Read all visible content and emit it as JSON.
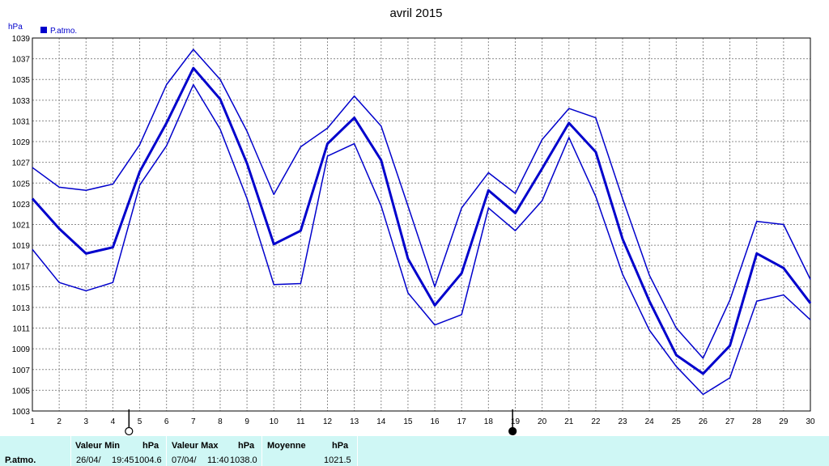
{
  "title": "avril 2015",
  "legend": {
    "label": "P.atmo.",
    "color": "#0000cc"
  },
  "chart_data": {
    "type": "line",
    "ylabel": "hPa",
    "ylim": [
      1003,
      1039
    ],
    "yticks": [
      1003,
      1005,
      1007,
      1009,
      1011,
      1013,
      1015,
      1017,
      1019,
      1021,
      1023,
      1025,
      1027,
      1029,
      1031,
      1033,
      1035,
      1037,
      1039
    ],
    "xlim": [
      1,
      30
    ],
    "x": [
      1,
      2,
      3,
      4,
      5,
      6,
      7,
      8,
      9,
      10,
      11,
      12,
      13,
      14,
      15,
      16,
      17,
      18,
      19,
      20,
      21,
      22,
      23,
      24,
      25,
      26,
      27,
      28,
      29,
      30
    ],
    "series": [
      {
        "role": "max",
        "values": [
          1026.5,
          1024.6,
          1024.3,
          1024.9,
          1028.7,
          1034.5,
          1037.9,
          1035.0,
          1030.0,
          1023.9,
          1028.5,
          1030.3,
          1033.4,
          1030.5,
          1022.8,
          1015.0,
          1022.6,
          1026.0,
          1024.0,
          1029.2,
          1032.2,
          1031.3,
          1023.5,
          1016.1,
          1011.0,
          1008.1,
          1013.7,
          1021.3,
          1021.0,
          1015.7
        ],
        "width": 1.5
      },
      {
        "role": "mean",
        "values": [
          1023.5,
          1020.6,
          1018.2,
          1018.8,
          1026.1,
          1030.8,
          1036.1,
          1033.1,
          1026.9,
          1019.1,
          1020.4,
          1028.8,
          1031.3,
          1027.2,
          1017.7,
          1013.2,
          1016.3,
          1024.3,
          1022.1,
          1026.4,
          1030.8,
          1028.0,
          1019.6,
          1013.6,
          1008.4,
          1006.6,
          1009.3,
          1018.2,
          1016.8,
          1013.4
        ],
        "width": 3
      },
      {
        "role": "min",
        "values": [
          1018.6,
          1015.4,
          1014.6,
          1015.4,
          1024.8,
          1028.6,
          1034.5,
          1030.2,
          1023.5,
          1015.2,
          1015.3,
          1027.6,
          1028.8,
          1022.8,
          1014.4,
          1011.3,
          1012.3,
          1022.6,
          1020.4,
          1023.3,
          1029.4,
          1023.7,
          1016.2,
          1010.8,
          1007.3,
          1004.6,
          1006.2,
          1013.6,
          1014.2,
          1011.8
        ],
        "width": 1.5
      }
    ],
    "grid": true,
    "moon_phases": [
      {
        "day": 4.6,
        "phase": "full"
      },
      {
        "day": 18.9,
        "phase": "new"
      }
    ]
  },
  "footer": {
    "row_label": "P.atmo.",
    "min": {
      "header": "Valeur Min",
      "unit": "hPa",
      "date": "26/04/",
      "time": "19:45",
      "value": "1004.6"
    },
    "max": {
      "header": "Valeur Max",
      "unit": "hPa",
      "date": "07/04/",
      "time": "11:40",
      "value": "1038.0"
    },
    "avg": {
      "header": "Moyenne",
      "unit": "hPa",
      "value": "1021.5"
    }
  }
}
